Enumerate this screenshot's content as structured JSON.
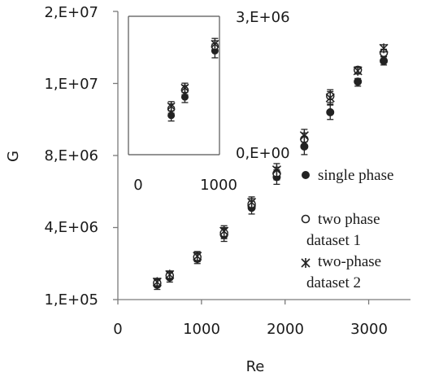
{
  "chart_data": [
    {
      "type": "scatter",
      "title": "",
      "xlabel": "Re",
      "ylabel": "G",
      "xlim": [
        0,
        3500
      ],
      "ylim": [
        100000,
        20000000
      ],
      "x_ticks": [
        "0",
        "1000",
        "2000",
        "3000"
      ],
      "x_tick_values": [
        0,
        1000,
        2000,
        3000
      ],
      "y_ticks": [
        "1,E+05",
        "4,E+06",
        "8,E+06",
        "1,E+07",
        "2,E+07"
      ],
      "y_tick_values": [
        100000,
        4000000,
        8000000,
        12000000,
        20000000
      ],
      "legend_position": "right",
      "grid": false,
      "series": [
        {
          "name": "single phase",
          "marker": "filled-circle",
          "x": [
            470,
            620,
            950,
            1270,
            1600,
            1900,
            2230,
            2540,
            2870,
            3180
          ],
          "y": [
            900000,
            1300000,
            2300000,
            3600000,
            5100000,
            6800000,
            8500000,
            10400000,
            12200000,
            14500000
          ],
          "error": [
            250000,
            250000,
            250000,
            350000,
            350000,
            400000,
            450000,
            400000,
            350000,
            450000
          ]
        },
        {
          "name": "two phase dataset 1",
          "marker": "open-circle",
          "x": [
            470,
            620,
            950,
            1270,
            1600,
            1900,
            2230,
            2540,
            2870,
            3180
          ],
          "y": [
            1000000,
            1400000,
            2400000,
            3700000,
            5300000,
            7000000,
            8900000,
            11300000,
            13500000,
            15400000
          ],
          "error": [
            200000,
            200000,
            250000,
            300000,
            300000,
            350000,
            350000,
            350000,
            350000,
            400000
          ]
        },
        {
          "name": "two-phase dataset 2",
          "marker": "star",
          "x": [
            470,
            620,
            950,
            1270,
            1600,
            1900,
            2230,
            2540,
            2870,
            3180
          ],
          "y": [
            1050000,
            1450000,
            2450000,
            3800000,
            5400000,
            7200000,
            9100000,
            11200000,
            13400000,
            15900000
          ],
          "error": [
            200000,
            200000,
            250000,
            300000,
            300000,
            350000,
            350000,
            350000,
            350000,
            400000
          ]
        }
      ]
    },
    {
      "type": "scatter",
      "inset": true,
      "xlim": [
        0,
        1000
      ],
      "ylim": [
        0,
        3000000
      ],
      "x_ticks": [
        "0",
        "1000"
      ],
      "x_tick_values": [
        0,
        1000
      ],
      "y_ticks": [
        "0,E+00",
        "3,E+06"
      ],
      "y_tick_values": [
        0,
        3000000
      ],
      "series": [
        {
          "name": "single phase",
          "marker": "filled-circle",
          "x": [
            470,
            620,
            950
          ],
          "y": [
            850000,
            1250000,
            2250000
          ],
          "error": [
            120000,
            120000,
            150000
          ]
        },
        {
          "name": "two phase dataset 1",
          "marker": "open-circle",
          "x": [
            470,
            620,
            950
          ],
          "y": [
            1000000,
            1400000,
            2350000
          ],
          "error": [
            100000,
            100000,
            120000
          ]
        },
        {
          "name": "two-phase dataset 2",
          "marker": "star",
          "x": [
            470,
            620,
            950
          ],
          "y": [
            1050000,
            1450000,
            2400000
          ],
          "error": [
            100000,
            100000,
            120000
          ]
        }
      ]
    }
  ],
  "legend": {
    "items": [
      {
        "lines": [
          "single phase"
        ],
        "marker": "filled-circle"
      },
      {
        "lines": [
          "two phase",
          "dataset 1"
        ],
        "marker": "open-circle"
      },
      {
        "lines": [
          "two-phase",
          "dataset 2"
        ],
        "marker": "star"
      }
    ]
  }
}
